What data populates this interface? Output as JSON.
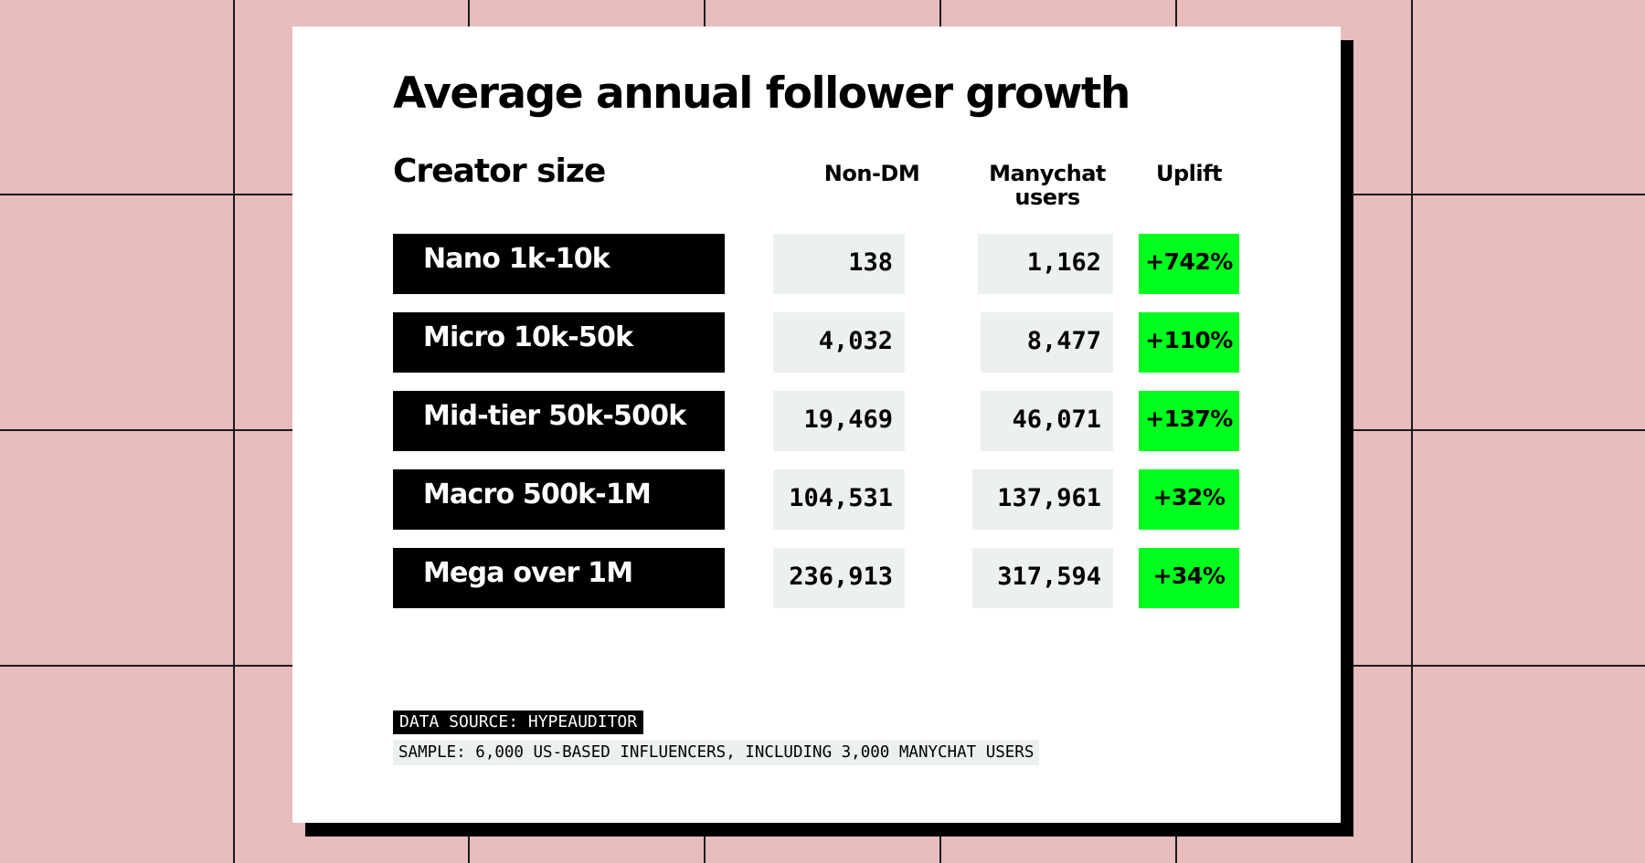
{
  "chart_data": {
    "type": "table",
    "title": "Average annual follower growth",
    "columns": [
      "Creator size",
      "Non-DM",
      "Manychat users",
      "Uplift"
    ],
    "rows": [
      {
        "size": "Nano 1k-10k",
        "non_dm": "138",
        "manychat": "1,162",
        "uplift": "+742%"
      },
      {
        "size": "Micro 10k-50k",
        "non_dm": "4,032",
        "manychat": "8,477",
        "uplift": "+110%"
      },
      {
        "size": "Mid-tier 50k-500k",
        "non_dm": "19,469",
        "manychat": "46,071",
        "uplift": "+137%"
      },
      {
        "size": "Macro 500k-1M",
        "non_dm": "104,531",
        "manychat": "137,961",
        "uplift": "+32%"
      },
      {
        "size": "Mega over 1M",
        "non_dm": "236,913",
        "manychat": "317,594",
        "uplift": "+34%"
      }
    ],
    "source": "DATA SOURCE: HYPEAUDITOR",
    "note": "SAMPLE: 6,000 US-BASED INFLUENCERS, INCLUDING 3,000 MANYCHAT USERS"
  },
  "colors": {
    "background": "#e6bcbd",
    "grid_lines": "#1a1a1a",
    "card": "#ffffff",
    "label_box": "#000000",
    "number_box": "#edf1ee",
    "uplift_box": "#00ff1e"
  }
}
